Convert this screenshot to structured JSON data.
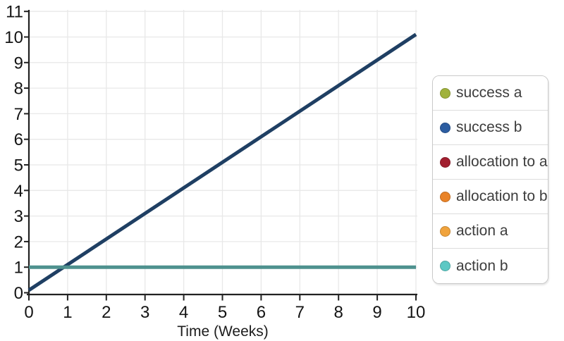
{
  "chart_data": {
    "type": "line",
    "title": "",
    "xlabel": "Time (Weeks)",
    "ylabel": "",
    "xlim": [
      0,
      10
    ],
    "ylim": [
      0,
      11
    ],
    "x_ticks": [
      0,
      1,
      2,
      3,
      4,
      5,
      6,
      7,
      8,
      9,
      10
    ],
    "y_ticks": [
      0,
      1,
      2,
      3,
      4,
      5,
      6,
      7,
      8,
      9,
      10,
      11
    ],
    "grid": true,
    "legend_position": "right",
    "series": [
      {
        "name": "success a",
        "legend_color": "#a0b23c",
        "line": null
      },
      {
        "name": "success b",
        "legend_color": "#2c5da1",
        "line": {
          "x": [
            0,
            10
          ],
          "y": [
            0.1,
            10.1
          ],
          "color": "#1f3f63",
          "width": 5
        }
      },
      {
        "name": "allocation to a",
        "legend_color": "#a21f2f",
        "line": null
      },
      {
        "name": "allocation to b",
        "legend_color": "#e98328",
        "line": null
      },
      {
        "name": "action a",
        "legend_color": "#f0a33c",
        "line": null
      },
      {
        "name": "action b",
        "legend_color": "#5cc8c4",
        "line": {
          "x": [
            0,
            10
          ],
          "y": [
            1,
            1
          ],
          "color": "#4e918e",
          "width": 5
        }
      }
    ],
    "colors": {
      "grid": "#e8e8e8",
      "axis": "#222222",
      "tick_label": "#141414",
      "legend_border": "#c9c9c9",
      "legend_divider": "#dddddd",
      "legend_text": "#3d3d3d",
      "background": "#ffffff"
    }
  }
}
